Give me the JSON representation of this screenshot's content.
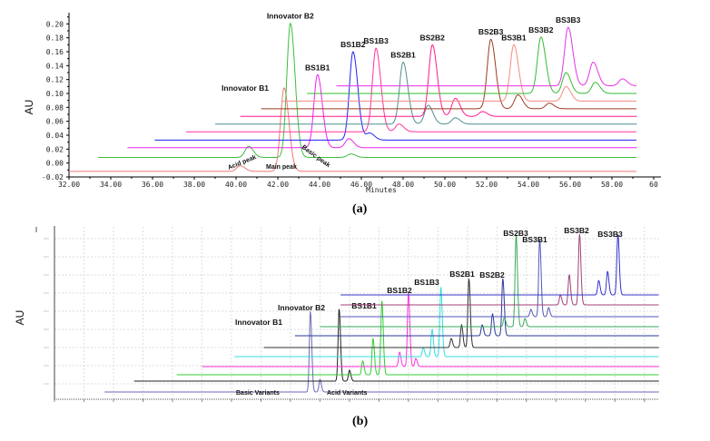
{
  "chart_data": [
    {
      "type": "line",
      "panel": "(a)",
      "xlabel": "Minutes",
      "ylabel": "AU",
      "xlim": [
        32,
        60
      ],
      "ylim": [
        -0.02,
        0.22
      ],
      "xticks": [
        "32.00",
        "34.00",
        "36.00",
        "38.00",
        "40.00",
        "42.00",
        "44.00",
        "46.00",
        "48.00",
        "50.00",
        "52.00",
        "54.00",
        "56.00",
        "58.00",
        "60"
      ],
      "yticks": [
        "-0.02",
        "0.00",
        "0.02",
        "0.04",
        "0.06",
        "0.08",
        "0.10",
        "0.12",
        "0.14",
        "0.16",
        "0.18",
        "0.20"
      ],
      "grid": false,
      "annotations": [
        "Acid peak",
        "Main peak",
        "Basic peak"
      ],
      "series": [
        {
          "name": "Innovator B1",
          "color": "#f07878",
          "baseline": -0.012,
          "start": 32.0,
          "peaks": [
            [
              40.2,
              -0.004
            ],
            [
              42.3,
              0.108
            ]
          ]
        },
        {
          "name": "Innovator B2",
          "color": "#3cbf3c",
          "baseline": 0.008,
          "start": 33.4,
          "peaks": [
            [
              40.6,
              0.024
            ],
            [
              42.6,
              0.201
            ],
            [
              45.5,
              0.013
            ]
          ]
        },
        {
          "name": "BS1B1",
          "color": "#ee22ee",
          "baseline": 0.022,
          "start": 34.8,
          "peaks": [
            [
              43.9,
              0.127
            ],
            [
              45.4,
              0.035
            ]
          ]
        },
        {
          "name": "BS1B2",
          "color": "#2222ee",
          "baseline": 0.033,
          "start": 36.1,
          "peaks": [
            [
              45.6,
              0.16
            ],
            [
              46.4,
              0.043
            ]
          ]
        },
        {
          "name": "BS1B3",
          "color": "#ff3399",
          "baseline": 0.045,
          "start": 37.6,
          "peaks": [
            [
              46.7,
              0.165
            ],
            [
              47.8,
              0.056
            ]
          ]
        },
        {
          "name": "BS2B1",
          "color": "#4f8f8f",
          "baseline": 0.056,
          "start": 39.0,
          "peaks": [
            [
              48.0,
              0.145
            ],
            [
              49.2,
              0.083
            ],
            [
              50.5,
              0.065
            ]
          ]
        },
        {
          "name": "BS2B2",
          "color": "#ff1a8c",
          "baseline": 0.067,
          "start": 40.2,
          "peaks": [
            [
              49.4,
              0.17
            ],
            [
              50.5,
              0.093
            ],
            [
              51.8,
              0.074
            ]
          ]
        },
        {
          "name": "BS2B3",
          "color": "#9a3c22",
          "baseline": 0.078,
          "start": 41.2,
          "peaks": [
            [
              52.2,
              0.178
            ],
            [
              53.5,
              0.098
            ],
            [
              55.0,
              0.086
            ]
          ]
        },
        {
          "name": "BS3B1",
          "color": "#f58a80",
          "baseline": 0.089,
          "start": 42.2,
          "peaks": [
            [
              53.3,
              0.17
            ],
            [
              55.8,
              0.11
            ]
          ]
        },
        {
          "name": "BS3B2",
          "color": "#33bb33",
          "baseline": 0.1,
          "start": 43.4,
          "peaks": [
            [
              54.6,
              0.181
            ],
            [
              55.8,
              0.13
            ],
            [
              57.2,
              0.116
            ]
          ]
        },
        {
          "name": "BS3B3",
          "color": "#e633e6",
          "baseline": 0.111,
          "start": 44.8,
          "peaks": [
            [
              55.9,
              0.195
            ],
            [
              57.1,
              0.145
            ],
            [
              58.5,
              0.121
            ]
          ]
        }
      ]
    },
    {
      "type": "line",
      "panel": "(b)",
      "xlabel": "",
      "ylabel": "AU",
      "xlim": [
        0,
        41
      ],
      "ylim": [
        0,
        0.019
      ],
      "grid": true,
      "annotations": [
        "Basic Variants",
        "Acid Variants"
      ],
      "series": [
        {
          "name": "Innovator B1",
          "color": "#6a6ab8",
          "baseline": 0.0011,
          "start": 3.4,
          "peaks": [
            [
              17.35,
              0.01
            ],
            [
              18.0,
              0.0025
            ]
          ]
        },
        {
          "name": "Innovator B2",
          "color": "#222222",
          "baseline": 0.0023,
          "start": 5.4,
          "peaks": [
            [
              19.3,
              0.0103
            ],
            [
              20.0,
              0.0035
            ]
          ]
        },
        {
          "name": "BS1B1",
          "color": "#33cc33",
          "baseline": 0.003,
          "start": 8.3,
          "peaks": [
            [
              20.9,
              0.0045
            ],
            [
              21.6,
              0.007
            ],
            [
              22.2,
              0.0112
            ]
          ]
        },
        {
          "name": "BS1B2",
          "color": "#ff33dd",
          "baseline": 0.0039,
          "start": 10.0,
          "peaks": [
            [
              23.4,
              0.0055
            ],
            [
              24.0,
              0.0121
            ],
            [
              24.5,
              0.0048
            ]
          ]
        },
        {
          "name": "BS1B3",
          "color": "#33dddd",
          "baseline": 0.005,
          "start": 12.2,
          "peaks": [
            [
              25.0,
              0.006
            ],
            [
              25.6,
              0.008
            ],
            [
              26.2,
              0.0127
            ]
          ]
        },
        {
          "name": "BS2B1",
          "color": "#333333",
          "baseline": 0.006,
          "start": 14.2,
          "peaks": [
            [
              26.9,
              0.007
            ],
            [
              27.6,
              0.0085
            ],
            [
              28.1,
              0.0136
            ]
          ]
        },
        {
          "name": "BS2B2",
          "color": "#2a3a99",
          "baseline": 0.0073,
          "start": 16.3,
          "peaks": [
            [
              29.0,
              0.0085
            ],
            [
              29.7,
              0.0097
            ],
            [
              30.4,
              0.0136
            ]
          ]
        },
        {
          "name": "BS2B3",
          "color": "#3aaa5a",
          "baseline": 0.0083,
          "start": 18.0,
          "peaks": [
            [
              30.5,
              0.0093
            ],
            [
              31.3,
              0.0185
            ],
            [
              31.9,
              0.0092
            ]
          ]
        },
        {
          "name": "BS3B1",
          "color": "#5555bb",
          "baseline": 0.0094,
          "start": 19.4,
          "peaks": [
            [
              32.3,
              0.0102
            ],
            [
              32.9,
              0.0179
            ],
            [
              33.5,
              0.0104
            ]
          ]
        },
        {
          "name": "BS3B2",
          "color": "#a0407a",
          "baseline": 0.0107,
          "start": 19.4,
          "peaks": [
            [
              34.3,
              0.0118
            ],
            [
              34.9,
              0.014
            ],
            [
              35.6,
              0.0185
            ]
          ]
        },
        {
          "name": "BS3B3",
          "color": "#3333cc",
          "baseline": 0.0118,
          "start": 19.4,
          "peaks": [
            [
              36.9,
              0.0134
            ],
            [
              37.5,
              0.0144
            ],
            [
              38.2,
              0.0185
            ]
          ]
        }
      ]
    }
  ]
}
